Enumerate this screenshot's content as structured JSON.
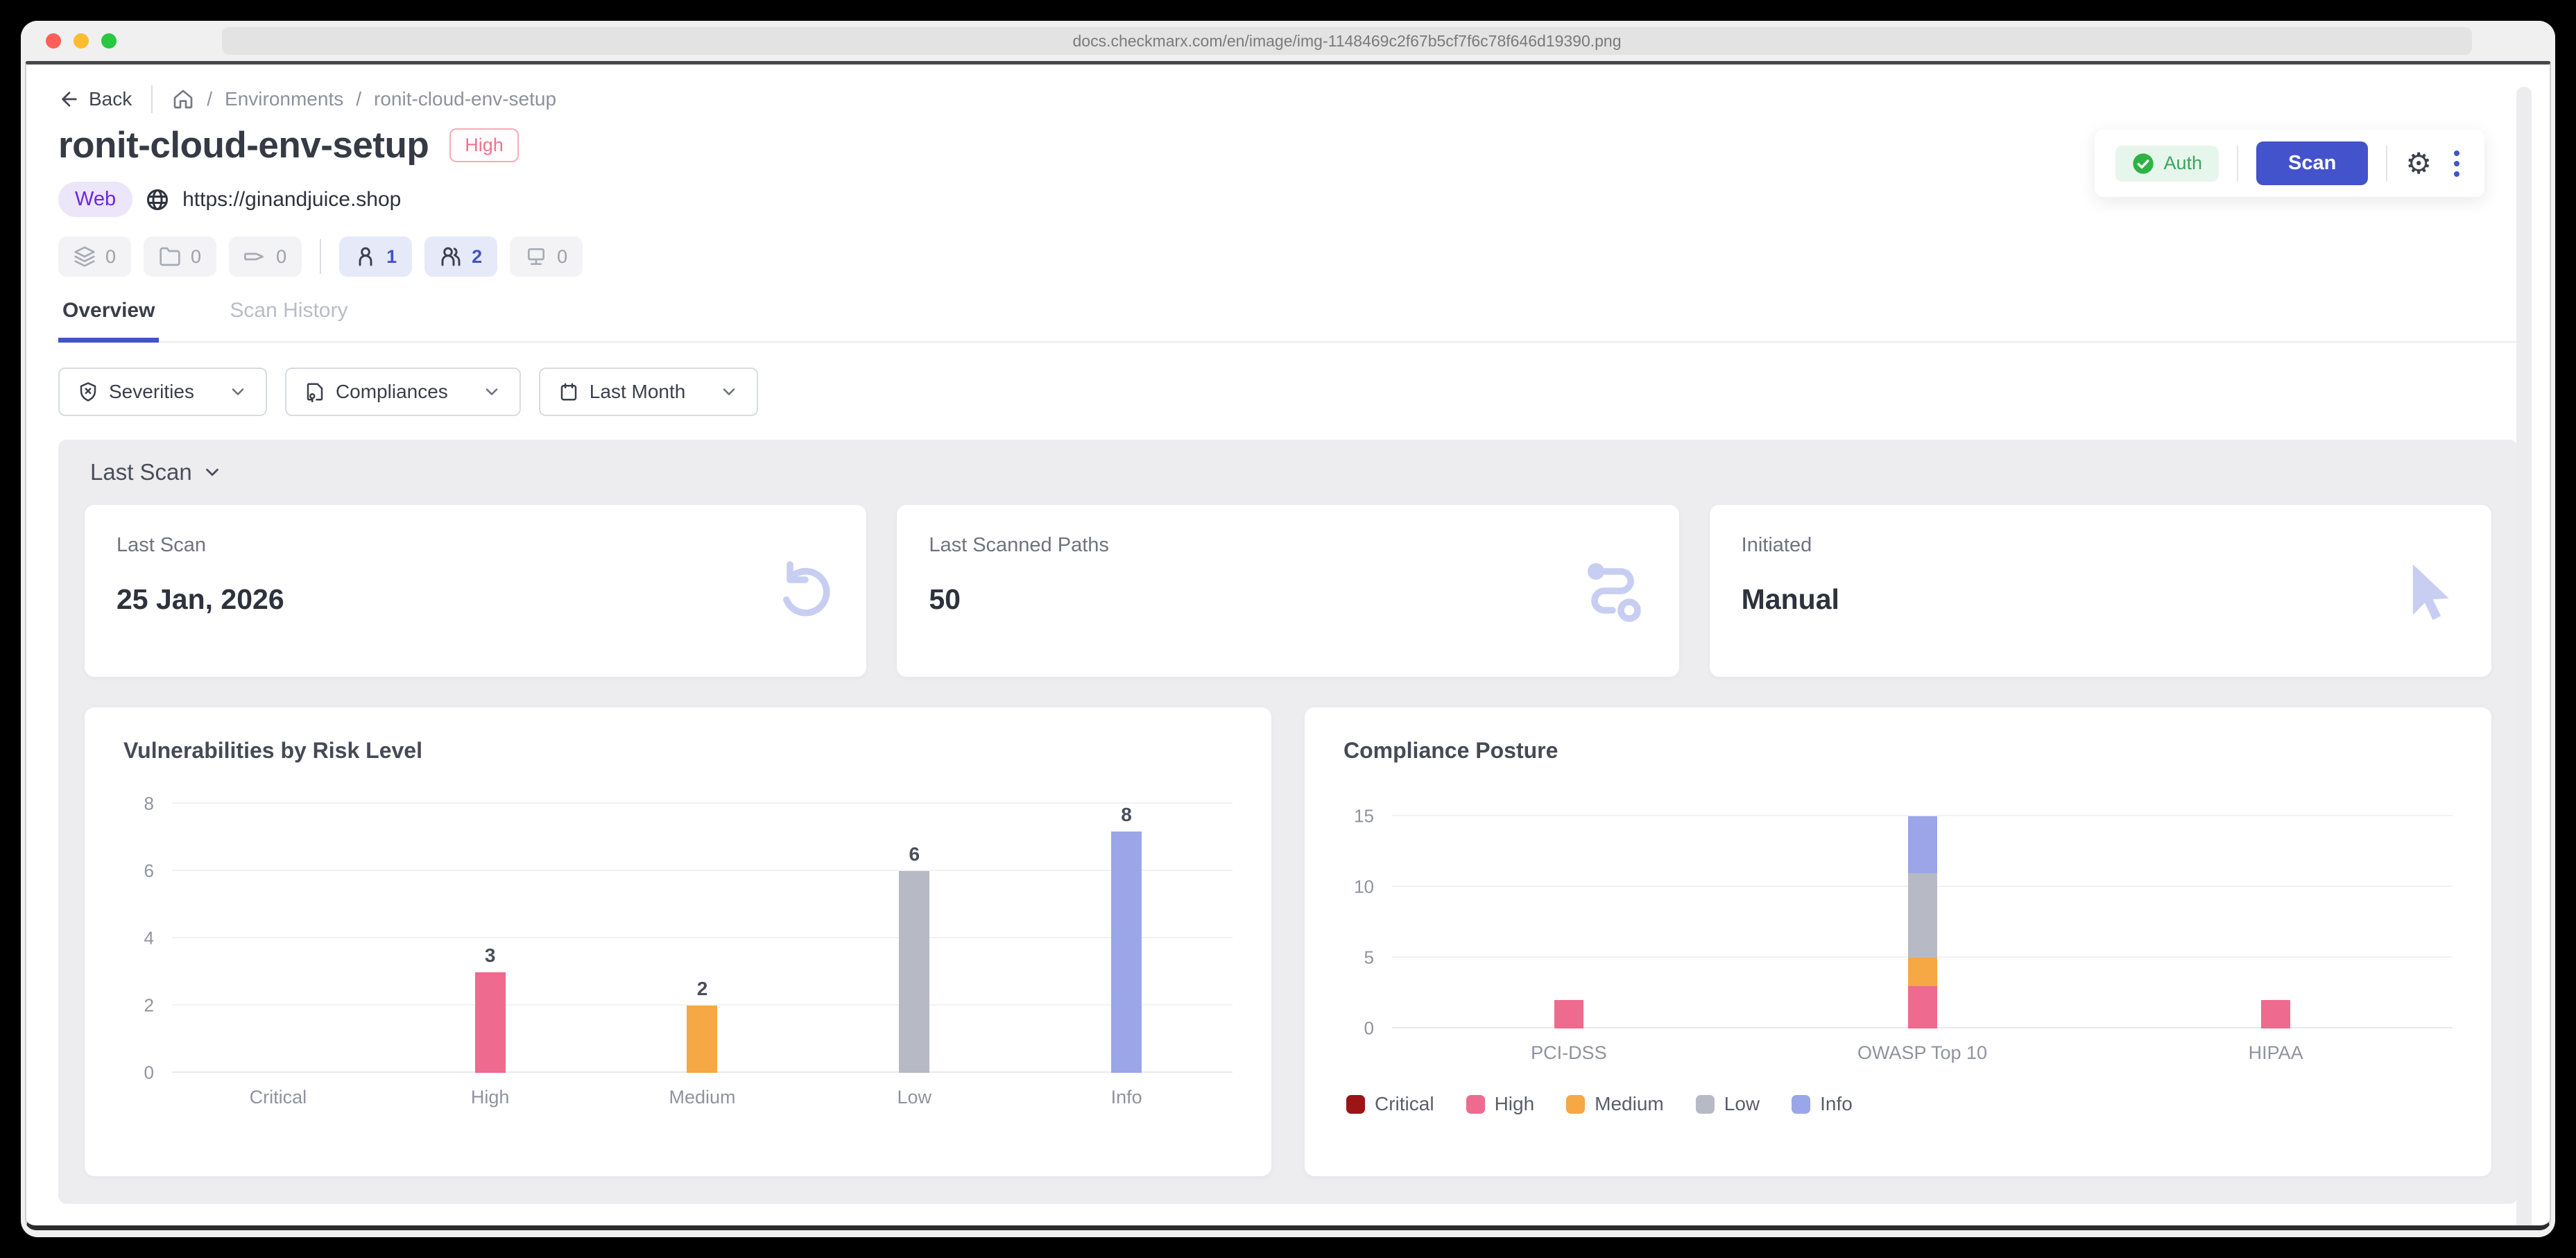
{
  "browser": {
    "url": "docs.checkmarx.com/en/image/img-1148469c2f67b5cf7f6c78f646d19390.png"
  },
  "header": {
    "back_label": "Back",
    "separator": "/",
    "breadcrumb_items": [
      "Environments",
      "ronit-cloud-env-setup"
    ],
    "title": "ronit-cloud-env-setup",
    "risk_badge": "High",
    "type_badge": "Web",
    "target_url": "https://ginandjuice.shop",
    "chips": [
      {
        "icon": "layers-icon",
        "count": "0"
      },
      {
        "icon": "folder-icon",
        "count": "0"
      },
      {
        "icon": "tag-icon",
        "count": "0"
      },
      {
        "icon": "user-icon",
        "count": "1"
      },
      {
        "icon": "users-icon",
        "count": "2"
      },
      {
        "icon": "network-icon",
        "count": "0"
      }
    ],
    "auth_label": "Auth",
    "scan_label": "Scan"
  },
  "tabs": [
    {
      "label": "Overview"
    },
    {
      "label": "Scan History"
    }
  ],
  "filters": [
    {
      "label": "Severities"
    },
    {
      "label": "Compliances"
    },
    {
      "label": "Last Month"
    }
  ],
  "overview": {
    "scan_selector_label": "Last Scan",
    "cards": [
      {
        "label": "Last Scan",
        "value": "25 Jan, 2026"
      },
      {
        "label": "Last Scanned Paths",
        "value": "50"
      },
      {
        "label": "Initiated",
        "value": "Manual"
      }
    ]
  },
  "chart_data": [
    {
      "type": "bar",
      "title": "Vulnerabilities by Risk Level",
      "categories": [
        "Critical",
        "High",
        "Medium",
        "Low",
        "Info"
      ],
      "values": [
        0,
        3,
        2,
        6,
        8
      ],
      "bar_colors": [
        "#9c1414",
        "#ee6a8e",
        "#f5a843",
        "#b7bac4",
        "#9ba6e8"
      ],
      "ylim": [
        0,
        8
      ],
      "yticks": [
        0,
        2,
        4,
        6,
        8
      ],
      "grid": true,
      "legend": false
    },
    {
      "type": "bar",
      "stacked": true,
      "title": "Compliance Posture",
      "categories": [
        "PCI-DSS",
        "OWASP Top 10",
        "HIPAA"
      ],
      "series": [
        {
          "name": "Critical",
          "color": "#9c1414",
          "values": [
            0,
            0,
            0
          ]
        },
        {
          "name": "High",
          "color": "#ee6a8e",
          "values": [
            2,
            3,
            2
          ]
        },
        {
          "name": "Medium",
          "color": "#f5a843",
          "values": [
            0,
            2,
            0
          ]
        },
        {
          "name": "Low",
          "color": "#b7bac4",
          "values": [
            0,
            6,
            0
          ]
        },
        {
          "name": "Info",
          "color": "#9ba6e8",
          "values": [
            0,
            4,
            0
          ]
        }
      ],
      "ylim": [
        0,
        15
      ],
      "yticks": [
        0,
        5,
        10,
        15
      ],
      "grid": true,
      "legend": true,
      "legend_position": "bottom"
    }
  ],
  "colors": {
    "accent_blue": "#4353cc",
    "critical": "#9c1414",
    "high": "#ee6a8e",
    "medium": "#f5a843",
    "low": "#b7bac4",
    "info": "#9ba6e8",
    "auth_green": "#2fb344"
  }
}
